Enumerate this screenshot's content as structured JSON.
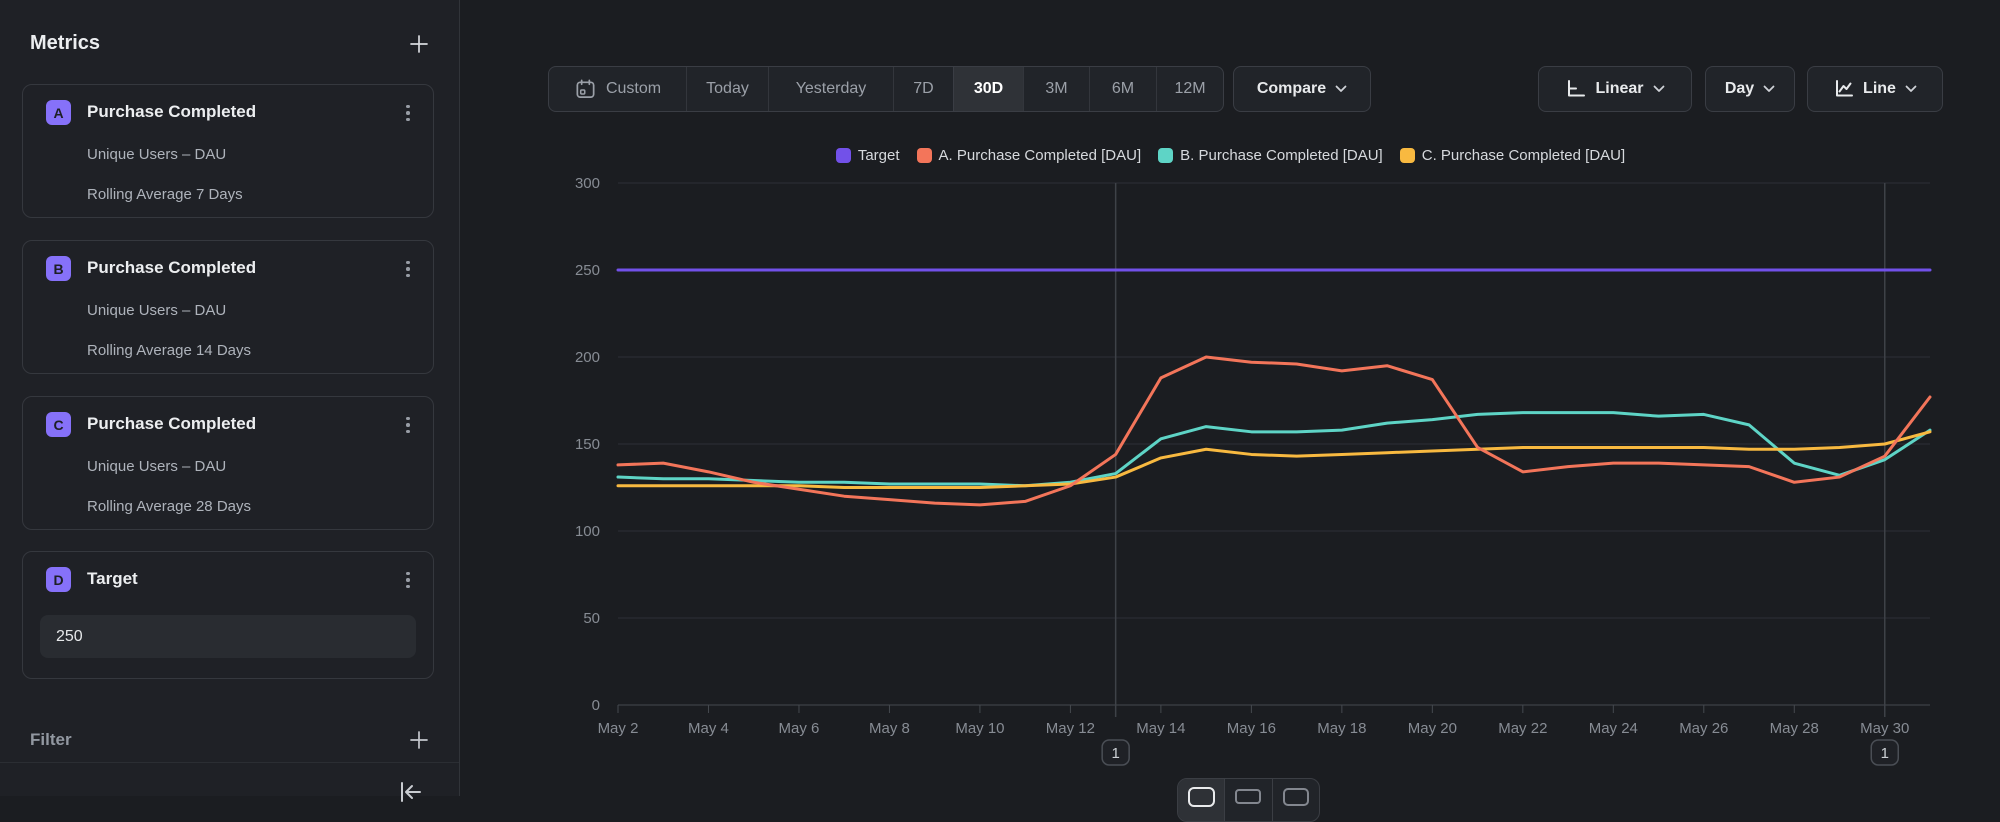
{
  "sidebar": {
    "title": "Metrics",
    "filter_title": "Filter",
    "metrics": [
      {
        "badge": "A",
        "title": "Purchase Completed",
        "measure": "Unique Users – DAU",
        "transform": "Rolling Average 7 Days"
      },
      {
        "badge": "B",
        "title": "Purchase Completed",
        "measure": "Unique Users – DAU",
        "transform": "Rolling Average 14 Days"
      },
      {
        "badge": "C",
        "title": "Purchase Completed",
        "measure": "Unique Users – DAU",
        "transform": "Rolling Average 28 Days"
      }
    ],
    "target_card": {
      "badge": "D",
      "title": "Target",
      "value": "250"
    }
  },
  "toolbar": {
    "date_ranges": {
      "items": [
        "Custom",
        "Today",
        "Yesterday",
        "7D",
        "30D",
        "3M",
        "6M",
        "12M"
      ],
      "selected": "30D"
    },
    "compare": "Compare",
    "scale": "Linear",
    "interval": "Day",
    "chart_type": "Line"
  },
  "chart_data": {
    "type": "line",
    "title": "",
    "x": [
      "May 2",
      "May 3",
      "May 4",
      "May 5",
      "May 6",
      "May 7",
      "May 8",
      "May 9",
      "May 10",
      "May 11",
      "May 12",
      "May 13",
      "May 14",
      "May 15",
      "May 16",
      "May 17",
      "May 18",
      "May 19",
      "May 20",
      "May 21",
      "May 22",
      "May 23",
      "May 24",
      "May 25",
      "May 26",
      "May 27",
      "May 28",
      "May 29",
      "May 30",
      "May 31"
    ],
    "x_tick_every": 2,
    "yticks": [
      0,
      50,
      100,
      150,
      200,
      250,
      300
    ],
    "ylim": [
      0,
      300
    ],
    "grid": true,
    "legend_position": "top",
    "series": [
      {
        "name": "Target",
        "color": "#7251e9",
        "values": [
          250,
          250,
          250,
          250,
          250,
          250,
          250,
          250,
          250,
          250,
          250,
          250,
          250,
          250,
          250,
          250,
          250,
          250,
          250,
          250,
          250,
          250,
          250,
          250,
          250,
          250,
          250,
          250,
          250,
          250
        ]
      },
      {
        "name": "A. Purchase Completed [DAU]",
        "color": "#f3755a",
        "values": [
          138,
          139,
          134,
          128,
          124,
          120,
          118,
          116,
          115,
          117,
          126,
          144,
          188,
          200,
          197,
          196,
          192,
          195,
          187,
          148,
          134,
          137,
          139,
          139,
          138,
          137,
          128,
          131,
          143,
          177
        ]
      },
      {
        "name": "B. Purchase Completed [DAU]",
        "color": "#5ed4c6",
        "values": [
          131,
          130,
          130,
          129,
          128,
          128,
          127,
          127,
          127,
          126,
          128,
          133,
          153,
          160,
          157,
          157,
          158,
          162,
          164,
          167,
          168,
          168,
          168,
          166,
          167,
          161,
          139,
          132,
          141,
          158
        ]
      },
      {
        "name": "C. Purchase Completed [DAU]",
        "color": "#f8b940",
        "values": [
          126,
          126,
          126,
          126,
          126,
          125,
          125,
          125,
          125,
          126,
          127,
          131,
          142,
          147,
          144,
          143,
          144,
          145,
          146,
          147,
          148,
          148,
          148,
          148,
          148,
          147,
          147,
          148,
          150,
          157
        ]
      }
    ],
    "annotations": [
      {
        "x_index": 11,
        "label": "1"
      },
      {
        "x_index": 28,
        "label": "1"
      }
    ]
  }
}
